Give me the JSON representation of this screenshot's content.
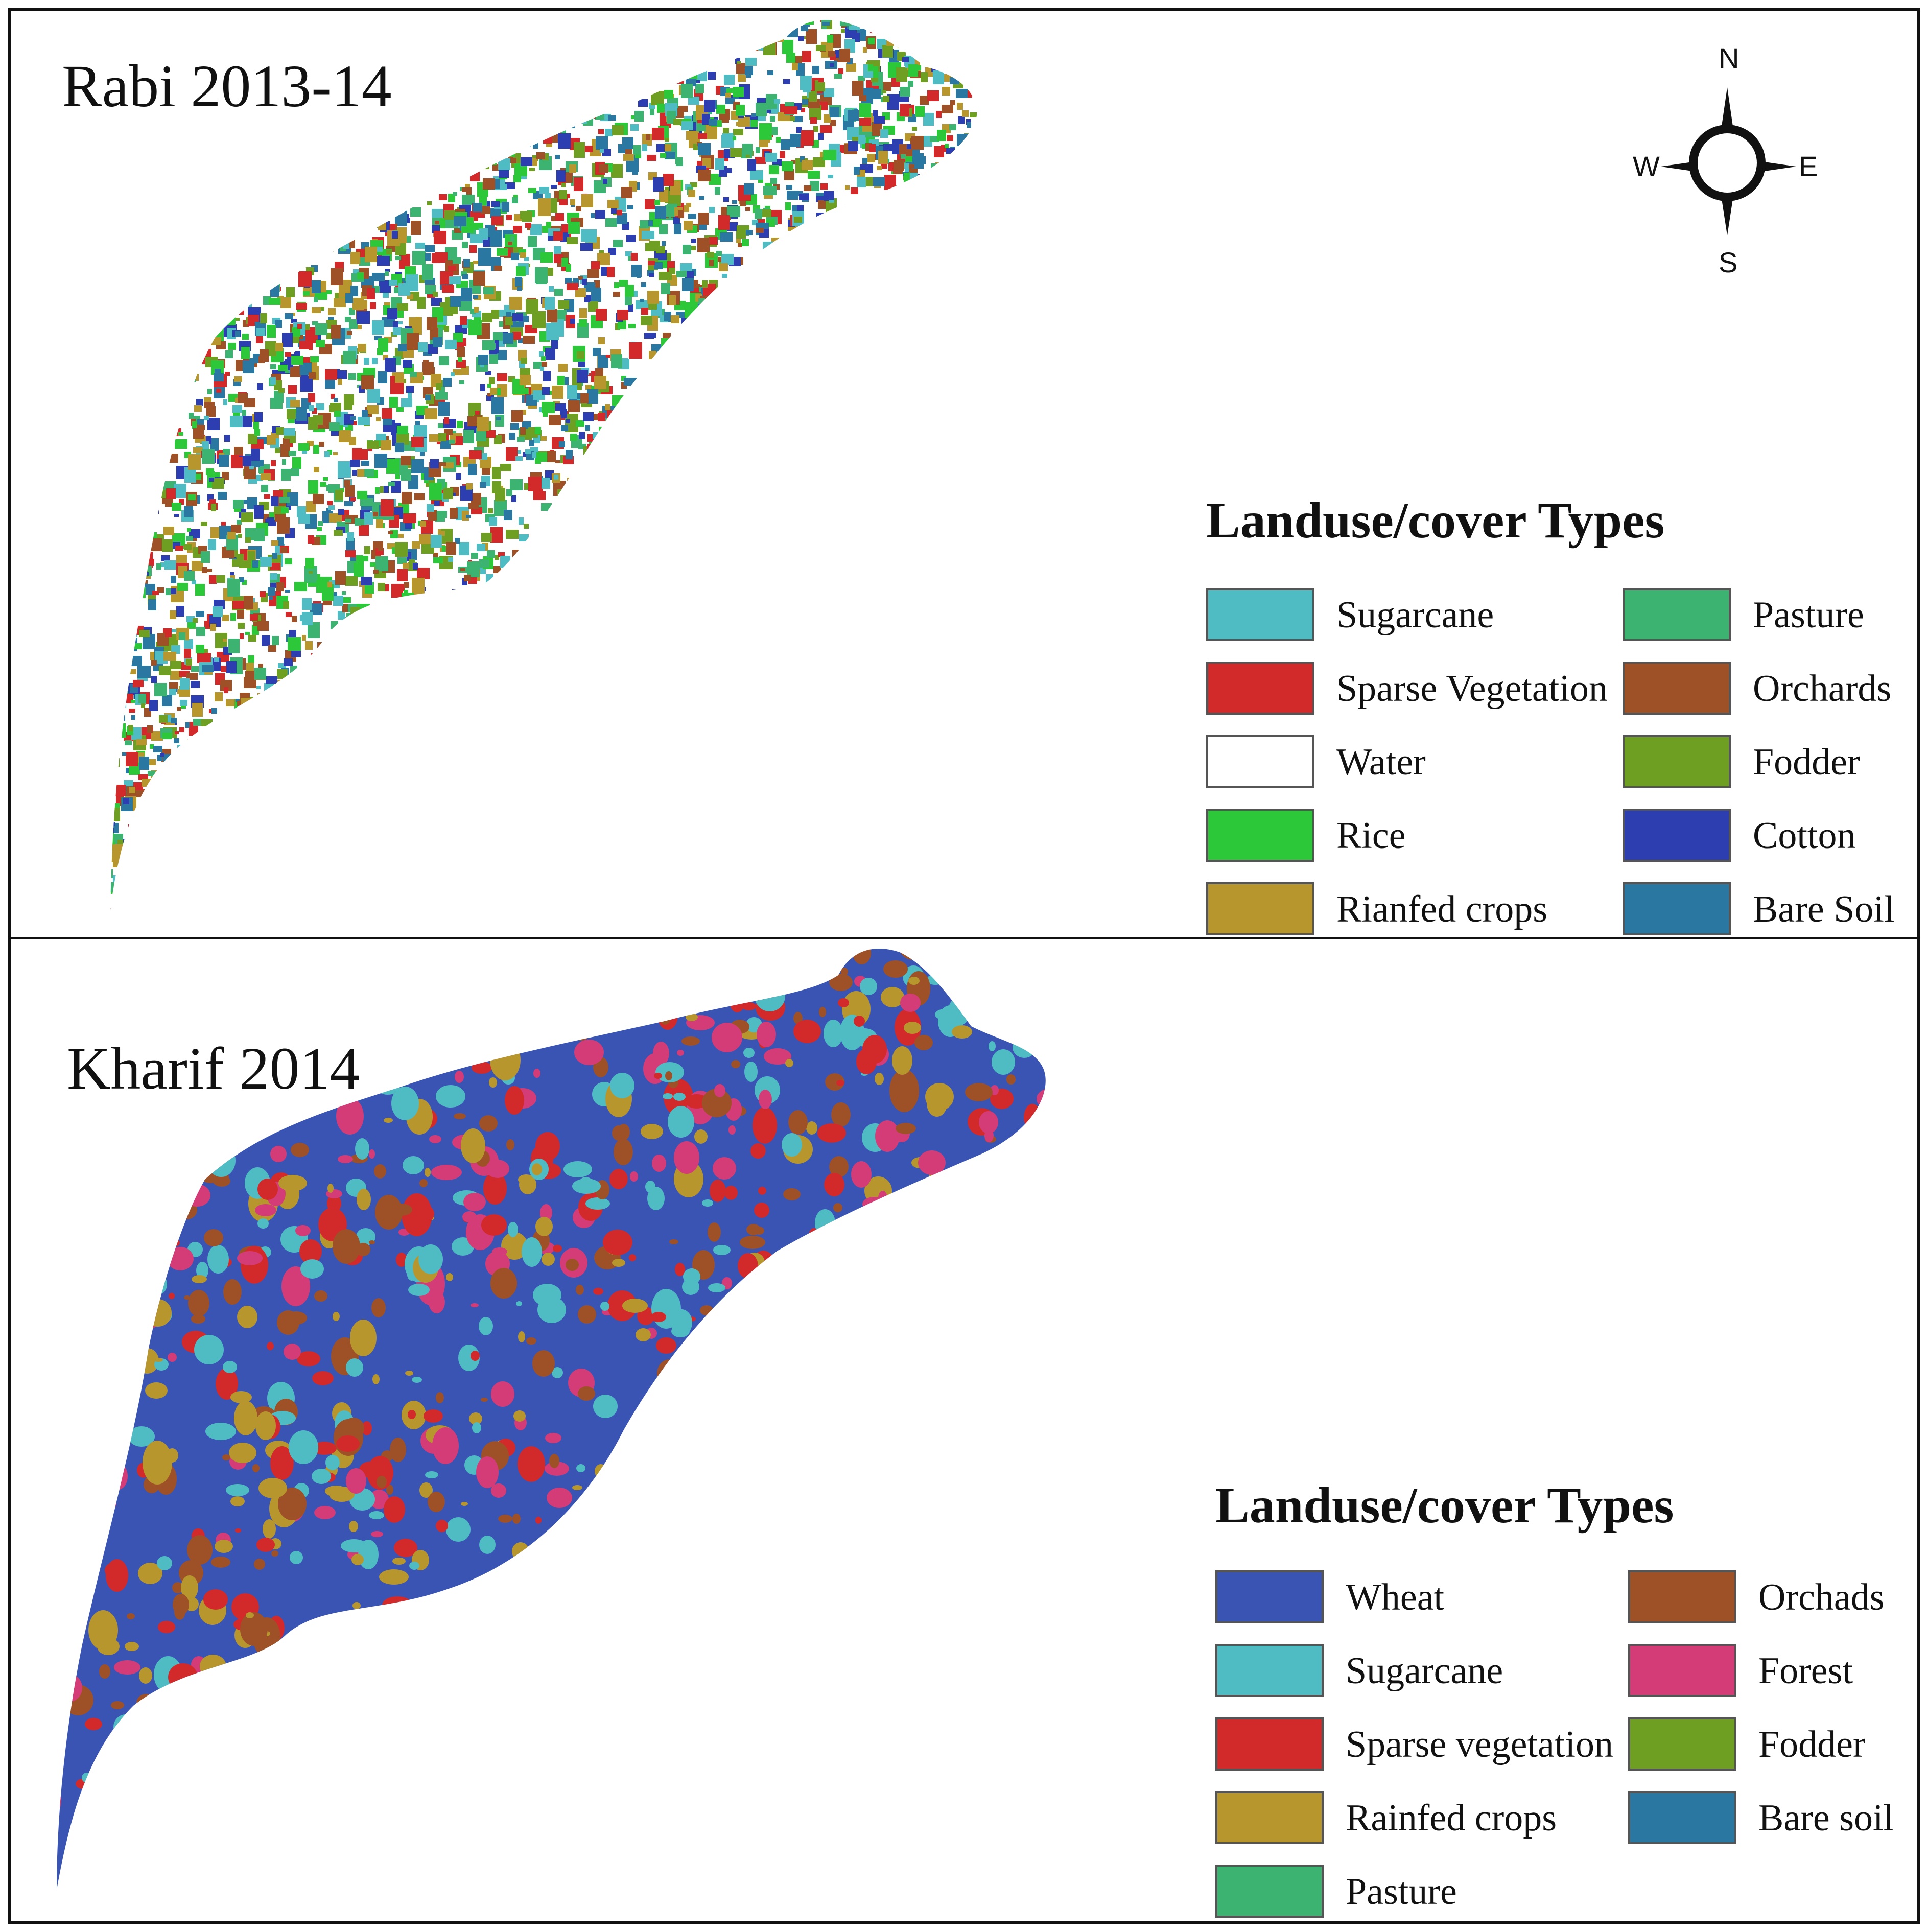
{
  "figure": {
    "panels": [
      {
        "title": "Rabi 2013-14",
        "legend": {
          "title": "Landuse/cover Types",
          "items": [
            {
              "label": "Sugarcane",
              "color": "#4fbcc4"
            },
            {
              "label": "Sparse Vegetation",
              "color": "#d22a2a"
            },
            {
              "label": "Water",
              "color": "#ffffff"
            },
            {
              "label": "Rice",
              "color": "#2cc83a"
            },
            {
              "label": "Rianfed crops",
              "color": "#b8962e"
            },
            {
              "label": "Pasture",
              "color": "#3cb371"
            },
            {
              "label": "Orchards",
              "color": "#9e5127"
            },
            {
              "label": "Fodder",
              "color": "#6e9e22"
            },
            {
              "label": "Cotton",
              "color": "#2c3eb0"
            },
            {
              "label": "Bare Soil",
              "color": "#2a78a2"
            }
          ]
        },
        "map_colors": [
          "#4fbcc4",
          "#9e5127",
          "#b8962e",
          "#2c3eb0",
          "#2cc83a",
          "#6e9e22",
          "#3cb371",
          "#d22a2a",
          "#2a78a2"
        ],
        "base_color": "#ffffff"
      },
      {
        "title": "Kharif 2014",
        "legend": {
          "title": "Landuse/cover Types",
          "items": [
            {
              "label": "Wheat",
              "color": "#3a54b4"
            },
            {
              "label": "Sugarcane",
              "color": "#4fbcc4"
            },
            {
              "label": "Sparse vegetation",
              "color": "#d22a2a"
            },
            {
              "label": "Rainfed crops",
              "color": "#b8962e"
            },
            {
              "label": "Pasture",
              "color": "#3cb371"
            },
            {
              "label": "Orchads",
              "color": "#9e5127"
            },
            {
              "label": "Forest",
              "color": "#d43c78"
            },
            {
              "label": "Fodder",
              "color": "#6e9e22"
            },
            {
              "label": "Bare soil",
              "color": "#2a78a2"
            }
          ]
        },
        "map_colors": [
          "#b8962e",
          "#9e5127",
          "#4fbcc4",
          "#d22a2a",
          "#d43c78"
        ],
        "base_color": "#3a54b4"
      }
    ],
    "compass": {
      "n": "N",
      "s": "S",
      "e": "E",
      "w": "W"
    }
  }
}
